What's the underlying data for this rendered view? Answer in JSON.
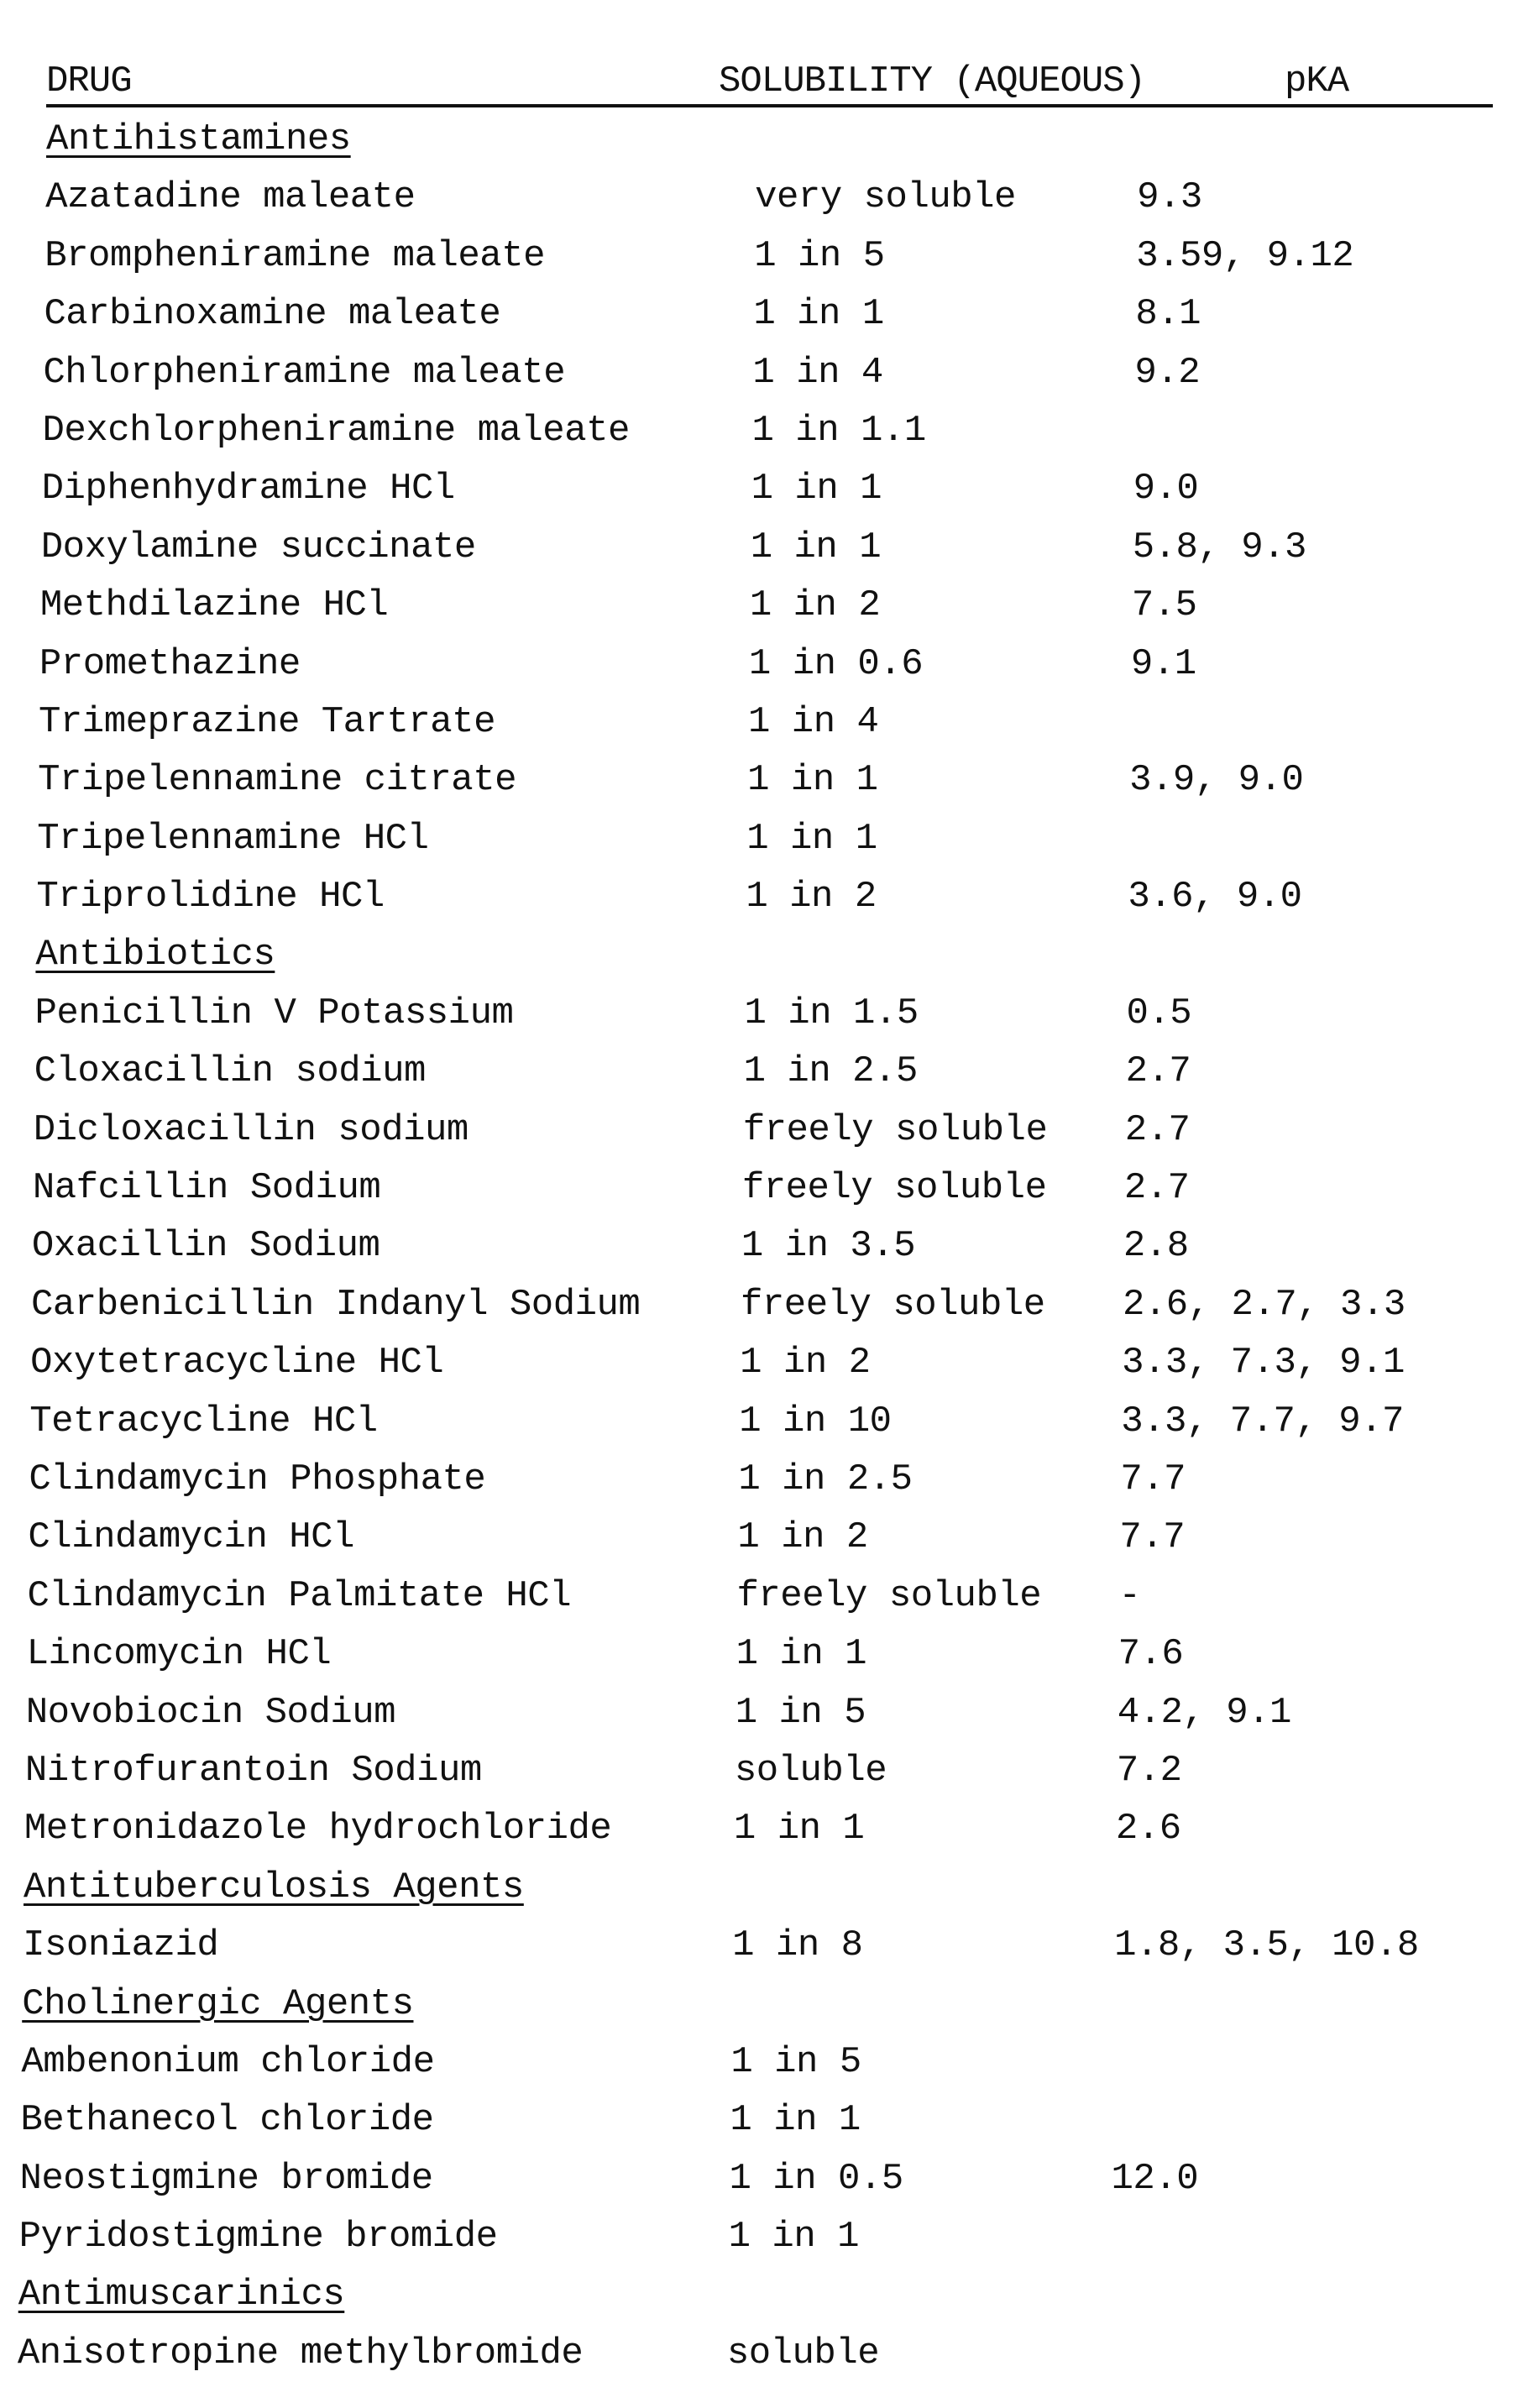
{
  "header": {
    "drug": "DRUG",
    "solubility": "SOLUBILITY (AQUEOUS)",
    "pka": "pKA"
  },
  "sections": [
    {
      "category": "Antihistamines",
      "rows": [
        [
          "Azatadine maleate",
          "very soluble",
          "9.3"
        ],
        [
          "Brompheniramine maleate",
          "1 in 5",
          "3.59, 9.12"
        ],
        [
          "Carbinoxamine maleate",
          "1 in 1",
          "8.1"
        ],
        [
          "Chlorpheniramine maleate",
          "1 in 4",
          "9.2"
        ],
        [
          "Dexchlorpheniramine maleate",
          "1 in 1.1",
          ""
        ],
        [
          "Diphenhydramine HCl",
          "1 in 1",
          "9.0"
        ],
        [
          "Doxylamine succinate",
          "1 in 1",
          "5.8, 9.3"
        ],
        [
          "Methdilazine HCl",
          "1 in 2",
          "7.5"
        ],
        [
          "Promethazine",
          "1 in 0.6",
          "9.1"
        ],
        [
          "Trimeprazine Tartrate",
          "1 in 4",
          ""
        ],
        [
          "Tripelennamine citrate",
          "1 in 1",
          "3.9, 9.0"
        ],
        [
          "Tripelennamine HCl",
          "1 in 1",
          ""
        ],
        [
          "Triprolidine HCl",
          "1 in 2",
          "3.6, 9.0"
        ]
      ]
    },
    {
      "category": "Antibiotics",
      "rows": [
        [
          "Penicillin V Potassium",
          "1 in 1.5",
          "0.5"
        ],
        [
          "Cloxacillin sodium",
          "1 in 2.5",
          "2.7"
        ],
        [
          "Dicloxacillin sodium",
          "freely soluble",
          "2.7"
        ],
        [
          "Nafcillin Sodium",
          "freely soluble",
          "2.7"
        ],
        [
          "Oxacillin Sodium",
          "1 in 3.5",
          "2.8"
        ],
        [
          "Carbenicillin Indanyl Sodium",
          "freely soluble",
          "2.6, 2.7, 3.3"
        ],
        [
          "Oxytetracycline HCl",
          "1 in 2",
          "3.3, 7.3, 9.1"
        ],
        [
          "Tetracycline HCl",
          "1 in 10",
          "3.3, 7.7, 9.7"
        ],
        [
          "Clindamycin Phosphate",
          "1 in 2.5",
          "7.7"
        ],
        [
          "Clindamycin HCl",
          "1 in 2",
          "7.7"
        ],
        [
          "Clindamycin Palmitate HCl",
          "freely soluble",
          "-"
        ],
        [
          "Lincomycin HCl",
          "1 in 1",
          "7.6"
        ],
        [
          "Novobiocin Sodium",
          "1 in 5",
          "4.2, 9.1"
        ],
        [
          "Nitrofurantoin Sodium",
          "soluble",
          "7.2"
        ],
        [
          "Metronidazole hydrochloride",
          "1 in 1",
          "2.6"
        ]
      ]
    },
    {
      "category": "Antituberculosis Agents",
      "rows": [
        [
          "Isoniazid",
          "1 in 8",
          "1.8, 3.5, 10.8"
        ]
      ]
    },
    {
      "category": "Cholinergic Agents",
      "rows": [
        [
          "Ambenonium chloride",
          "1 in 5",
          ""
        ],
        [
          "Bethanecol chloride",
          "1 in 1",
          ""
        ],
        [
          "Neostigmine bromide",
          "1 in 0.5",
          "12.0"
        ],
        [
          "Pyridostigmine bromide",
          "1 in 1",
          ""
        ]
      ]
    },
    {
      "category": "Antimuscarinics",
      "rows": [
        [
          "Anisotropine methylbromide",
          "soluble",
          ""
        ]
      ]
    }
  ]
}
